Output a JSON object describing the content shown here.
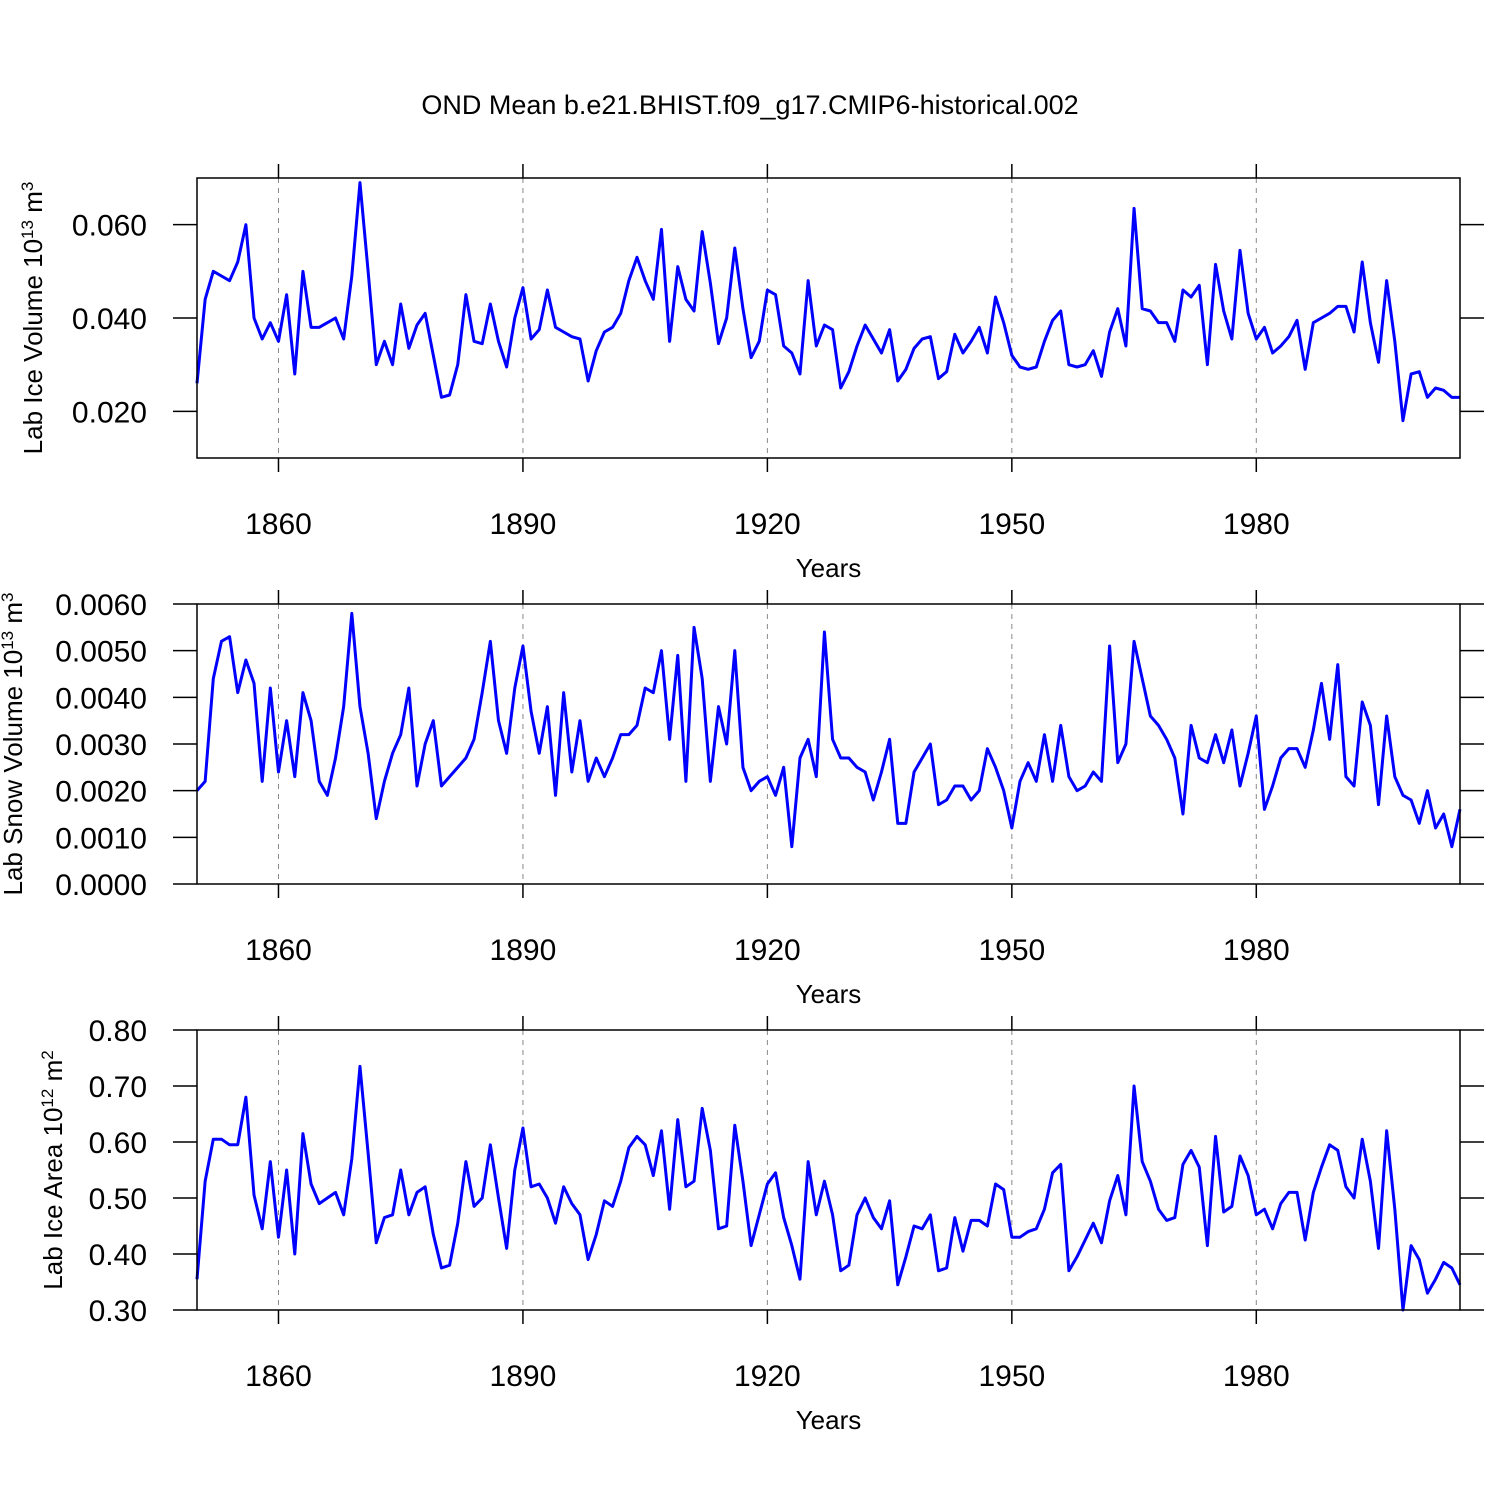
{
  "title": "OND Mean b.e21.BHIST.f09_g17.CMIP6-historical.002",
  "chart_data": [
    {
      "type": "line",
      "ylabel": [
        "Lab Ice Volume 10",
        "13",
        " m",
        "3"
      ],
      "xlabel": "Years",
      "color": "#0000ff",
      "grid": "x",
      "xlim": [
        1850,
        2005
      ],
      "xticks": [
        1860,
        1890,
        1920,
        1950,
        1980
      ],
      "ylim": [
        0.01,
        0.07
      ],
      "yticks": [
        {
          "value": 0.02,
          "label": "0.020"
        },
        {
          "value": 0.04,
          "label": "0.040"
        },
        {
          "value": 0.06,
          "label": "0.060"
        }
      ],
      "x": [
        1850,
        1851,
        1852,
        1853,
        1854,
        1855,
        1856,
        1857,
        1858,
        1859,
        1860,
        1861,
        1862,
        1863,
        1864,
        1865,
        1866,
        1867,
        1868,
        1869,
        1870,
        1871,
        1872,
        1873,
        1874,
        1875,
        1876,
        1877,
        1878,
        1879,
        1880,
        1881,
        1882,
        1883,
        1884,
        1885,
        1886,
        1887,
        1888,
        1889,
        1890,
        1891,
        1892,
        1893,
        1894,
        1895,
        1896,
        1897,
        1898,
        1899,
        1900,
        1901,
        1902,
        1903,
        1904,
        1905,
        1906,
        1907,
        1908,
        1909,
        1910,
        1911,
        1912,
        1913,
        1914,
        1915,
        1916,
        1917,
        1918,
        1919,
        1920,
        1921,
        1922,
        1923,
        1924,
        1925,
        1926,
        1927,
        1928,
        1929,
        1930,
        1931,
        1932,
        1933,
        1934,
        1935,
        1936,
        1937,
        1938,
        1939,
        1940,
        1941,
        1942,
        1943,
        1944,
        1945,
        1946,
        1947,
        1948,
        1949,
        1950,
        1951,
        1952,
        1953,
        1954,
        1955,
        1956,
        1957,
        1958,
        1959,
        1960,
        1961,
        1962,
        1963,
        1964,
        1965,
        1966,
        1967,
        1968,
        1969,
        1970,
        1971,
        1972,
        1973,
        1974,
        1975,
        1976,
        1977,
        1978,
        1979,
        1980,
        1981,
        1982,
        1983,
        1984,
        1985,
        1986,
        1987,
        1988,
        1989,
        1990,
        1991,
        1992,
        1993,
        1994,
        1995,
        1996,
        1997,
        1998,
        1999,
        2000,
        2001,
        2002,
        2003,
        2004,
        2005
      ],
      "values": [
        0.026,
        0.044,
        0.05,
        0.049,
        0.048,
        0.052,
        0.06,
        0.04,
        0.0355,
        0.039,
        0.035,
        0.045,
        0.028,
        0.05,
        0.038,
        0.038,
        0.039,
        0.04,
        0.0355,
        0.049,
        0.069,
        0.05,
        0.03,
        0.035,
        0.03,
        0.043,
        0.0335,
        0.0385,
        0.041,
        0.032,
        0.023,
        0.0235,
        0.03,
        0.045,
        0.035,
        0.0345,
        0.043,
        0.035,
        0.0295,
        0.04,
        0.0465,
        0.0355,
        0.0375,
        0.046,
        0.038,
        0.037,
        0.036,
        0.0355,
        0.0265,
        0.033,
        0.037,
        0.038,
        0.041,
        0.048,
        0.053,
        0.048,
        0.044,
        0.059,
        0.035,
        0.051,
        0.044,
        0.0415,
        0.0585,
        0.0475,
        0.0345,
        0.04,
        0.055,
        0.042,
        0.0315,
        0.035,
        0.046,
        0.045,
        0.034,
        0.0325,
        0.028,
        0.048,
        0.034,
        0.0385,
        0.0375,
        0.025,
        0.0285,
        0.034,
        0.0385,
        0.0355,
        0.0325,
        0.0375,
        0.0265,
        0.029,
        0.0335,
        0.0355,
        0.036,
        0.027,
        0.0285,
        0.0365,
        0.0325,
        0.035,
        0.038,
        0.0325,
        0.0445,
        0.039,
        0.032,
        0.0295,
        0.029,
        0.0295,
        0.035,
        0.0395,
        0.0415,
        0.03,
        0.0295,
        0.03,
        0.033,
        0.0275,
        0.037,
        0.042,
        0.034,
        0.0635,
        0.042,
        0.0415,
        0.039,
        0.039,
        0.035,
        0.046,
        0.0445,
        0.047,
        0.03,
        0.0515,
        0.0415,
        0.0355,
        0.0545,
        0.041,
        0.0355,
        0.038,
        0.0325,
        0.034,
        0.036,
        0.0395,
        0.029,
        0.039,
        0.04,
        0.041,
        0.0425,
        0.0425,
        0.037,
        0.052,
        0.039,
        0.0305,
        0.048,
        0.035,
        0.018,
        0.028,
        0.0285,
        0.023,
        0.025,
        0.0245,
        0.023,
        0.023
      ]
    },
    {
      "type": "line",
      "ylabel": [
        "Lab Snow Volume 10",
        "13",
        " m",
        "3"
      ],
      "xlabel": "Years",
      "color": "#0000ff",
      "grid": "x",
      "xlim": [
        1850,
        2005
      ],
      "xticks": [
        1860,
        1890,
        1920,
        1950,
        1980
      ],
      "ylim": [
        0,
        0.006
      ],
      "yticks": [
        {
          "value": 0,
          "label": "0.0000"
        },
        {
          "value": 0.001,
          "label": "0.0010"
        },
        {
          "value": 0.002,
          "label": "0.0020"
        },
        {
          "value": 0.003,
          "label": "0.0030"
        },
        {
          "value": 0.004,
          "label": "0.0040"
        },
        {
          "value": 0.005,
          "label": "0.0050"
        },
        {
          "value": 0.006,
          "label": "0.0060"
        }
      ],
      "x": [
        1850,
        1851,
        1852,
        1853,
        1854,
        1855,
        1856,
        1857,
        1858,
        1859,
        1860,
        1861,
        1862,
        1863,
        1864,
        1865,
        1866,
        1867,
        1868,
        1869,
        1870,
        1871,
        1872,
        1873,
        1874,
        1875,
        1876,
        1877,
        1878,
        1879,
        1880,
        1881,
        1882,
        1883,
        1884,
        1885,
        1886,
        1887,
        1888,
        1889,
        1890,
        1891,
        1892,
        1893,
        1894,
        1895,
        1896,
        1897,
        1898,
        1899,
        1900,
        1901,
        1902,
        1903,
        1904,
        1905,
        1906,
        1907,
        1908,
        1909,
        1910,
        1911,
        1912,
        1913,
        1914,
        1915,
        1916,
        1917,
        1918,
        1919,
        1920,
        1921,
        1922,
        1923,
        1924,
        1925,
        1926,
        1927,
        1928,
        1929,
        1930,
        1931,
        1932,
        1933,
        1934,
        1935,
        1936,
        1937,
        1938,
        1939,
        1940,
        1941,
        1942,
        1943,
        1944,
        1945,
        1946,
        1947,
        1948,
        1949,
        1950,
        1951,
        1952,
        1953,
        1954,
        1955,
        1956,
        1957,
        1958,
        1959,
        1960,
        1961,
        1962,
        1963,
        1964,
        1965,
        1966,
        1967,
        1968,
        1969,
        1970,
        1971,
        1972,
        1973,
        1974,
        1975,
        1976,
        1977,
        1978,
        1979,
        1980,
        1981,
        1982,
        1983,
        1984,
        1985,
        1986,
        1987,
        1988,
        1989,
        1990,
        1991,
        1992,
        1993,
        1994,
        1995,
        1996,
        1997,
        1998,
        1999,
        2000,
        2001,
        2002,
        2003,
        2004,
        2005
      ],
      "values": [
        0.002,
        0.0022,
        0.0044,
        0.0052,
        0.0053,
        0.0041,
        0.0048,
        0.0043,
        0.0022,
        0.0042,
        0.0024,
        0.0035,
        0.0023,
        0.0041,
        0.0035,
        0.0022,
        0.0019,
        0.0027,
        0.0038,
        0.0058,
        0.0038,
        0.0028,
        0.0014,
        0.0022,
        0.0028,
        0.0032,
        0.0042,
        0.0021,
        0.003,
        0.0035,
        0.0021,
        0.0023,
        0.0025,
        0.0027,
        0.0031,
        0.0041,
        0.0052,
        0.0035,
        0.0028,
        0.0042,
        0.0051,
        0.0037,
        0.0028,
        0.0038,
        0.0019,
        0.0041,
        0.0024,
        0.0035,
        0.0022,
        0.0027,
        0.0023,
        0.0027,
        0.0032,
        0.0032,
        0.0034,
        0.0042,
        0.0041,
        0.005,
        0.0031,
        0.0049,
        0.0022,
        0.0055,
        0.0044,
        0.0022,
        0.0038,
        0.003,
        0.005,
        0.0025,
        0.002,
        0.0022,
        0.0023,
        0.0019,
        0.0025,
        0.0008,
        0.0027,
        0.0031,
        0.0023,
        0.0054,
        0.0031,
        0.0027,
        0.0027,
        0.0025,
        0.0024,
        0.0018,
        0.0024,
        0.0031,
        0.0013,
        0.0013,
        0.0024,
        0.0027,
        0.003,
        0.0017,
        0.0018,
        0.0021,
        0.0021,
        0.0018,
        0.002,
        0.0029,
        0.0025,
        0.002,
        0.0012,
        0.0022,
        0.0026,
        0.0022,
        0.0032,
        0.0022,
        0.0034,
        0.0023,
        0.002,
        0.0021,
        0.0024,
        0.0022,
        0.0051,
        0.0026,
        0.003,
        0.0052,
        0.0044,
        0.0036,
        0.0034,
        0.0031,
        0.0027,
        0.0015,
        0.0034,
        0.0027,
        0.0026,
        0.0032,
        0.0026,
        0.0033,
        0.0021,
        0.0028,
        0.0036,
        0.0016,
        0.0021,
        0.0027,
        0.0029,
        0.0029,
        0.0025,
        0.0033,
        0.0043,
        0.0031,
        0.0047,
        0.0023,
        0.0021,
        0.0039,
        0.0034,
        0.0017,
        0.0036,
        0.0023,
        0.0019,
        0.0018,
        0.0013,
        0.002,
        0.0012,
        0.0015,
        0.0008,
        0.0016
      ]
    },
    {
      "type": "line",
      "ylabel": [
        "Lab Ice Area 10",
        "12",
        " m",
        "2"
      ],
      "xlabel": "Years",
      "color": "#0000ff",
      "grid": "x",
      "xlim": [
        1850,
        2005
      ],
      "xticks": [
        1860,
        1890,
        1920,
        1950,
        1980
      ],
      "ylim": [
        0.3,
        0.8
      ],
      "yticks": [
        {
          "value": 0.3,
          "label": "0.30"
        },
        {
          "value": 0.4,
          "label": "0.40"
        },
        {
          "value": 0.5,
          "label": "0.50"
        },
        {
          "value": 0.6,
          "label": "0.60"
        },
        {
          "value": 0.7,
          "label": "0.70"
        },
        {
          "value": 0.8,
          "label": "0.80"
        }
      ],
      "x": [
        1850,
        1851,
        1852,
        1853,
        1854,
        1855,
        1856,
        1857,
        1858,
        1859,
        1860,
        1861,
        1862,
        1863,
        1864,
        1865,
        1866,
        1867,
        1868,
        1869,
        1870,
        1871,
        1872,
        1873,
        1874,
        1875,
        1876,
        1877,
        1878,
        1879,
        1880,
        1881,
        1882,
        1883,
        1884,
        1885,
        1886,
        1887,
        1888,
        1889,
        1890,
        1891,
        1892,
        1893,
        1894,
        1895,
        1896,
        1897,
        1898,
        1899,
        1900,
        1901,
        1902,
        1903,
        1904,
        1905,
        1906,
        1907,
        1908,
        1909,
        1910,
        1911,
        1912,
        1913,
        1914,
        1915,
        1916,
        1917,
        1918,
        1919,
        1920,
        1921,
        1922,
        1923,
        1924,
        1925,
        1926,
        1927,
        1928,
        1929,
        1930,
        1931,
        1932,
        1933,
        1934,
        1935,
        1936,
        1937,
        1938,
        1939,
        1940,
        1941,
        1942,
        1943,
        1944,
        1945,
        1946,
        1947,
        1948,
        1949,
        1950,
        1951,
        1952,
        1953,
        1954,
        1955,
        1956,
        1957,
        1958,
        1959,
        1960,
        1961,
        1962,
        1963,
        1964,
        1965,
        1966,
        1967,
        1968,
        1969,
        1970,
        1971,
        1972,
        1973,
        1974,
        1975,
        1976,
        1977,
        1978,
        1979,
        1980,
        1981,
        1982,
        1983,
        1984,
        1985,
        1986,
        1987,
        1988,
        1989,
        1990,
        1991,
        1992,
        1993,
        1994,
        1995,
        1996,
        1997,
        1998,
        1999,
        2000,
        2001,
        2002,
        2003,
        2004,
        2005
      ],
      "values": [
        0.355,
        0.53,
        0.605,
        0.605,
        0.595,
        0.595,
        0.68,
        0.505,
        0.445,
        0.565,
        0.43,
        0.55,
        0.4,
        0.615,
        0.525,
        0.49,
        0.5,
        0.51,
        0.47,
        0.57,
        0.735,
        0.58,
        0.42,
        0.465,
        0.47,
        0.55,
        0.47,
        0.51,
        0.52,
        0.435,
        0.375,
        0.38,
        0.455,
        0.565,
        0.485,
        0.5,
        0.595,
        0.5,
        0.41,
        0.55,
        0.625,
        0.52,
        0.525,
        0.5,
        0.455,
        0.52,
        0.49,
        0.47,
        0.39,
        0.435,
        0.495,
        0.485,
        0.53,
        0.59,
        0.61,
        0.595,
        0.54,
        0.62,
        0.48,
        0.64,
        0.52,
        0.53,
        0.66,
        0.585,
        0.445,
        0.45,
        0.63,
        0.53,
        0.415,
        0.47,
        0.525,
        0.545,
        0.465,
        0.415,
        0.355,
        0.565,
        0.47,
        0.53,
        0.47,
        0.37,
        0.38,
        0.47,
        0.5,
        0.465,
        0.445,
        0.495,
        0.345,
        0.395,
        0.45,
        0.445,
        0.47,
        0.37,
        0.375,
        0.465,
        0.405,
        0.46,
        0.46,
        0.45,
        0.525,
        0.515,
        0.43,
        0.43,
        0.44,
        0.445,
        0.48,
        0.545,
        0.56,
        0.37,
        0.395,
        0.425,
        0.455,
        0.42,
        0.495,
        0.54,
        0.47,
        0.7,
        0.565,
        0.53,
        0.48,
        0.46,
        0.465,
        0.56,
        0.585,
        0.555,
        0.415,
        0.61,
        0.475,
        0.485,
        0.575,
        0.54,
        0.47,
        0.48,
        0.445,
        0.49,
        0.51,
        0.51,
        0.425,
        0.51,
        0.555,
        0.595,
        0.585,
        0.52,
        0.5,
        0.605,
        0.53,
        0.41,
        0.62,
        0.48,
        0.3,
        0.415,
        0.39,
        0.33,
        0.355,
        0.385,
        0.375,
        0.345
      ]
    }
  ]
}
